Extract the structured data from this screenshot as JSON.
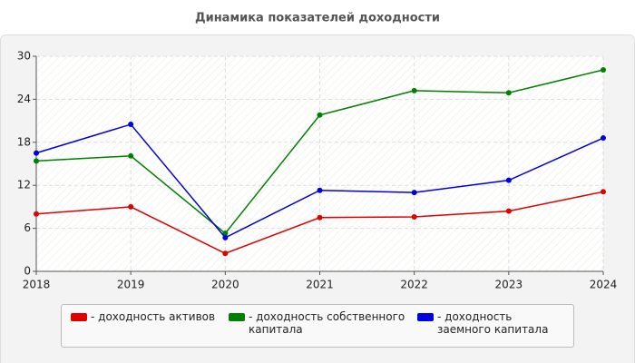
{
  "chart_data": {
    "type": "line",
    "title": "Динамика показателей доходности",
    "x": [
      2018,
      2019,
      2020,
      2021,
      2022,
      2023,
      2024
    ],
    "xlim": [
      2018,
      2024
    ],
    "xticks": [
      2018,
      2019,
      2020,
      2021,
      2022,
      2023,
      2024
    ],
    "ylim": [
      0,
      30
    ],
    "yticks": [
      0,
      6,
      12,
      18,
      24,
      30
    ],
    "grid": true,
    "series": [
      {
        "name": "- доходность активов",
        "color": "#e00000",
        "values": [
          8.0,
          9.0,
          2.5,
          7.5,
          7.6,
          8.4,
          11.1
        ]
      },
      {
        "name": "- доходность собственного капитала",
        "color": "#008000",
        "values": [
          15.4,
          16.1,
          5.3,
          21.8,
          25.2,
          24.9,
          28.1
        ]
      },
      {
        "name": "- доходность заемного капитала",
        "color": "#0000e0",
        "values": [
          16.5,
          20.5,
          4.7,
          11.3,
          11.0,
          12.7,
          18.6
        ]
      }
    ]
  }
}
